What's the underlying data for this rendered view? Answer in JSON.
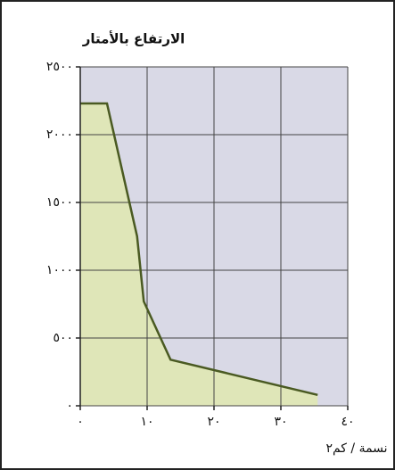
{
  "chart_data": {
    "type": "area",
    "title": "الارتفاع بالأمتار",
    "x_label": "نسمة / كم٢",
    "x": [
      0,
      4,
      8.5,
      9.5,
      13.5,
      35.5
    ],
    "values": [
      2230,
      2230,
      1250,
      770,
      340,
      80
    ],
    "color": "#dfe6b8",
    "line_color": "#4a5a22",
    "background": "#d9d9e6",
    "grid": true,
    "xlim": [
      0,
      40
    ],
    "ylim": [
      0,
      2500
    ],
    "xticks": [
      {
        "value": 0,
        "label": "٠"
      },
      {
        "value": 10,
        "label": "١٠"
      },
      {
        "value": 20,
        "label": "٢٠"
      },
      {
        "value": 30,
        "label": "٣٠"
      },
      {
        "value": 40,
        "label": "٤٠"
      }
    ],
    "yticks": [
      {
        "value": 0,
        "label": "٠"
      },
      {
        "value": 500,
        "label": "٥٠٠"
      },
      {
        "value": 1000,
        "label": "١٠٠٠"
      },
      {
        "value": 1500,
        "label": "١٥٠٠"
      },
      {
        "value": 2000,
        "label": "٢٠٠٠"
      },
      {
        "value": 2500,
        "label": "٢٥٠٠"
      }
    ]
  }
}
